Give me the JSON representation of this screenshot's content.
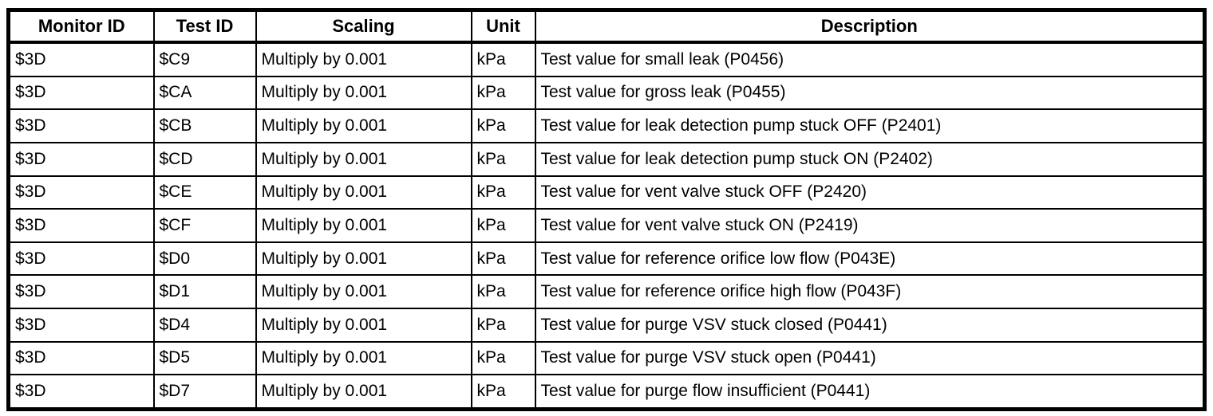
{
  "table": {
    "columns": [
      {
        "key": "monitor_id",
        "label": "Monitor ID"
      },
      {
        "key": "test_id",
        "label": "Test ID"
      },
      {
        "key": "scaling",
        "label": "Scaling"
      },
      {
        "key": "unit",
        "label": "Unit"
      },
      {
        "key": "description",
        "label": "Description"
      }
    ],
    "rows": [
      {
        "monitor_id": "$3D",
        "test_id": "$C9",
        "scaling": "Multiply by 0.001",
        "unit": "kPa",
        "description": "Test value for small leak (P0456)"
      },
      {
        "monitor_id": "$3D",
        "test_id": "$CA",
        "scaling": "Multiply by 0.001",
        "unit": "kPa",
        "description": "Test value for gross leak (P0455)"
      },
      {
        "monitor_id": "$3D",
        "test_id": "$CB",
        "scaling": "Multiply by 0.001",
        "unit": "kPa",
        "description": "Test value for leak detection pump stuck OFF (P2401)"
      },
      {
        "monitor_id": "$3D",
        "test_id": "$CD",
        "scaling": "Multiply by 0.001",
        "unit": "kPa",
        "description": "Test value for leak detection pump stuck ON (P2402)"
      },
      {
        "monitor_id": "$3D",
        "test_id": "$CE",
        "scaling": "Multiply by 0.001",
        "unit": "kPa",
        "description": "Test value for vent valve stuck OFF (P2420)"
      },
      {
        "monitor_id": "$3D",
        "test_id": "$CF",
        "scaling": "Multiply by 0.001",
        "unit": "kPa",
        "description": "Test value for vent valve stuck ON (P2419)"
      },
      {
        "monitor_id": "$3D",
        "test_id": "$D0",
        "scaling": "Multiply by 0.001",
        "unit": "kPa",
        "description": "Test value for reference orifice low flow (P043E)"
      },
      {
        "monitor_id": "$3D",
        "test_id": "$D1",
        "scaling": "Multiply by 0.001",
        "unit": "kPa",
        "description": "Test value for reference orifice high flow (P043F)"
      },
      {
        "monitor_id": "$3D",
        "test_id": "$D4",
        "scaling": "Multiply by 0.001",
        "unit": "kPa",
        "description": "Test value for purge VSV stuck closed (P0441)"
      },
      {
        "monitor_id": "$3D",
        "test_id": "$D5",
        "scaling": "Multiply by 0.001",
        "unit": "kPa",
        "description": "Test value for purge VSV stuck open (P0441)"
      },
      {
        "monitor_id": "$3D",
        "test_id": "$D7",
        "scaling": "Multiply by 0.001",
        "unit": "kPa",
        "description": "Test value for purge flow insufficient (P0441)"
      }
    ],
    "colors": {
      "border": "#000000",
      "text": "#000000",
      "background": "#ffffff"
    }
  }
}
